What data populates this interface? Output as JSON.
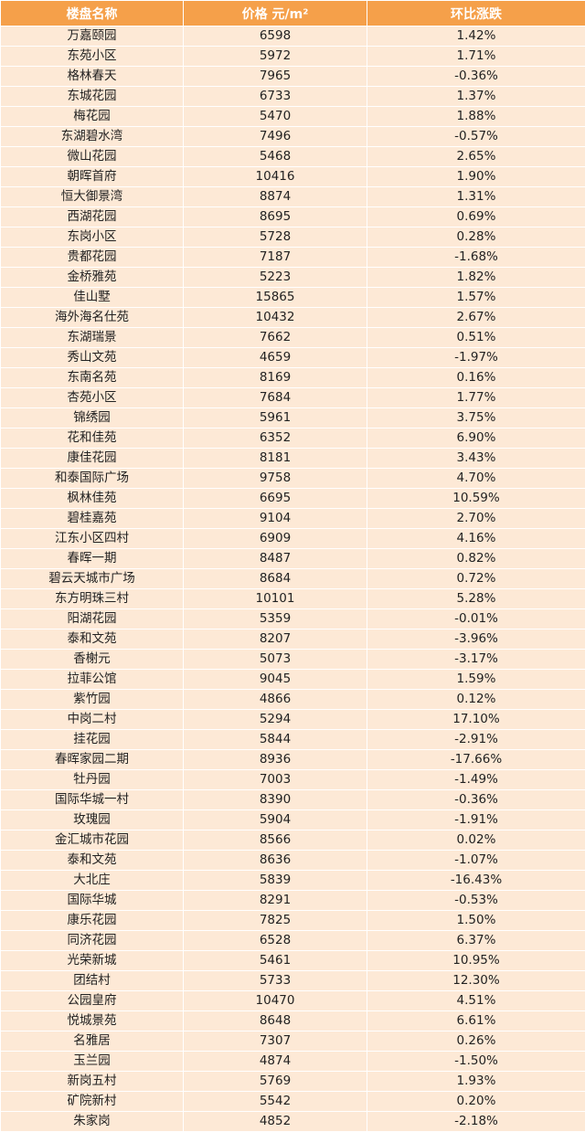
{
  "header": {
    "name": "楼盘名称",
    "price": "价格 元/m²",
    "change": "环比涨跌"
  },
  "colors": {
    "header_bg": "#f5a04a",
    "row_bg": "#fde9d6"
  },
  "rows": [
    [
      "万嘉颐园",
      "6598",
      "1.42%"
    ],
    [
      "东苑小区",
      "5972",
      "1.71%"
    ],
    [
      "格林春天",
      "7965",
      "-0.36%"
    ],
    [
      "东城花园",
      "6733",
      "1.37%"
    ],
    [
      "梅花园",
      "5470",
      "1.88%"
    ],
    [
      "东湖碧水湾",
      "7496",
      "-0.57%"
    ],
    [
      "微山花园",
      "5468",
      "2.65%"
    ],
    [
      "朝晖首府",
      "10416",
      "1.90%"
    ],
    [
      "恒大御景湾",
      "8874",
      "1.31%"
    ],
    [
      "西湖花园",
      "8695",
      "0.69%"
    ],
    [
      "东岗小区",
      "5728",
      "0.28%"
    ],
    [
      "贵都花园",
      "7187",
      "-1.68%"
    ],
    [
      "金桥雅苑",
      "5223",
      "1.82%"
    ],
    [
      "佳山墅",
      "15865",
      "1.57%"
    ],
    [
      "海外海名仕苑",
      "10432",
      "2.67%"
    ],
    [
      "东湖瑞景",
      "7662",
      "0.51%"
    ],
    [
      "秀山文苑",
      "4659",
      "-1.97%"
    ],
    [
      "东南名苑",
      "8169",
      "0.16%"
    ],
    [
      "杏苑小区",
      "7684",
      "1.77%"
    ],
    [
      "锦绣园",
      "5961",
      "3.75%"
    ],
    [
      "花和佳苑",
      "6352",
      "6.90%"
    ],
    [
      "康佳花园",
      "8181",
      "3.43%"
    ],
    [
      "和泰国际广场",
      "9758",
      "4.70%"
    ],
    [
      "枫林佳苑",
      "6695",
      "10.59%"
    ],
    [
      "碧桂嘉苑",
      "9104",
      "2.70%"
    ],
    [
      "江东小区四村",
      "6909",
      "4.16%"
    ],
    [
      "春晖一期",
      "8487",
      "0.82%"
    ],
    [
      "碧云天城市广场",
      "8684",
      "0.72%"
    ],
    [
      "东方明珠三村",
      "10101",
      "5.28%"
    ],
    [
      "阳湖花园",
      "5359",
      "-0.01%"
    ],
    [
      "泰和文苑",
      "8207",
      "-3.96%"
    ],
    [
      "香榭元",
      "5073",
      "-3.17%"
    ],
    [
      "拉菲公馆",
      "9045",
      "1.59%"
    ],
    [
      "紫竹园",
      "4866",
      "0.12%"
    ],
    [
      "中岗二村",
      "5294",
      "17.10%"
    ],
    [
      "挂花园",
      "5844",
      "-2.91%"
    ],
    [
      "春晖家园二期",
      "8936",
      "-17.66%"
    ],
    [
      "牡丹园",
      "7003",
      "-1.49%"
    ],
    [
      "国际华城一村",
      "8390",
      "-0.36%"
    ],
    [
      "玫瑰园",
      "5904",
      "-1.91%"
    ],
    [
      "金汇城市花园",
      "8566",
      "0.02%"
    ],
    [
      "泰和文苑",
      "8636",
      "-1.07%"
    ],
    [
      "大北庄",
      "5839",
      "-16.43%"
    ],
    [
      "国际华城",
      "8291",
      "-0.53%"
    ],
    [
      "康乐花园",
      "7825",
      "1.50%"
    ],
    [
      "同济花园",
      "6528",
      "6.37%"
    ],
    [
      "光荣新城",
      "5461",
      "10.95%"
    ],
    [
      "团结村",
      "5733",
      "12.30%"
    ],
    [
      "公园皇府",
      "10470",
      "4.51%"
    ],
    [
      "悦城景苑",
      "8648",
      "6.61%"
    ],
    [
      "名雅居",
      "7307",
      "0.26%"
    ],
    [
      "玉兰园",
      "4874",
      "-1.50%"
    ],
    [
      "新岗五村",
      "5769",
      "1.93%"
    ],
    [
      "矿院新村",
      "5542",
      "0.20%"
    ],
    [
      "朱家岗",
      "4852",
      "-2.18%"
    ]
  ]
}
